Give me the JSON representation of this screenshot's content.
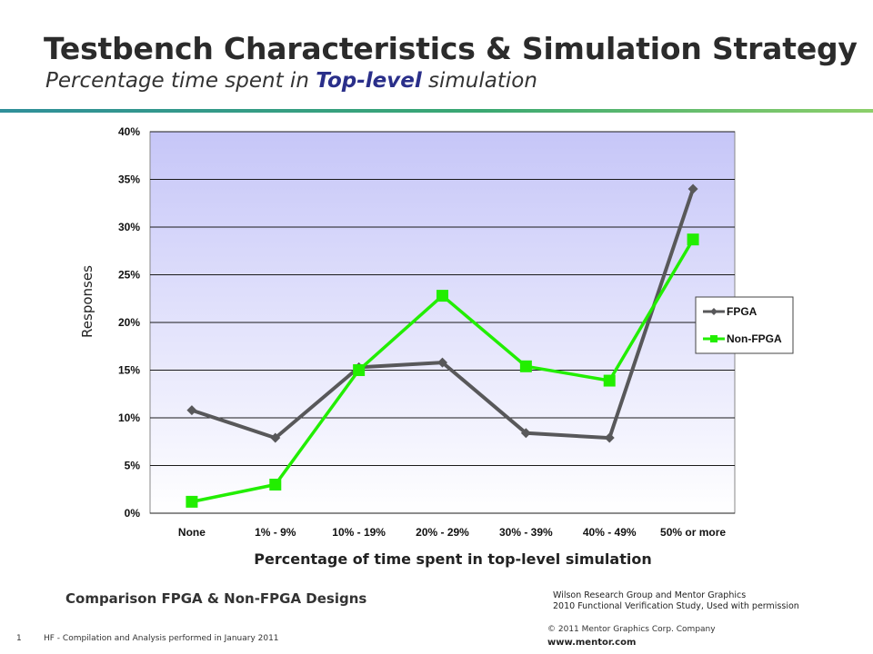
{
  "slide": {
    "title": "Testbench Characteristics & Simulation Strategy",
    "subtitle_pre": "Percentage time spent in ",
    "subtitle_highlight": "Top-level",
    "subtitle_post": " simulation",
    "caption": "Comparison FPGA & Non-FPGA Designs",
    "credit_line1": "Wilson Research Group and Mentor Graphics",
    "credit_line2": "2010 Functional Verification Study,  Used with permission",
    "page_number": "1",
    "footer_note": "HF - Compilation and Analysis performed in January 2011",
    "copyright": "© 2011 Mentor Graphics Corp. Company",
    "website": "www.mentor.com"
  },
  "colors": {
    "fpga": "#58585a",
    "non_fpga": "#22ee00",
    "plot_bg_top": "#c6c6f8",
    "plot_bg_bottom": "#ffffff",
    "accent_rule": "#3aa872"
  },
  "chart_data": {
    "type": "line",
    "xlabel": "Percentage of time spent in top-level simulation",
    "ylabel": "Responses",
    "categories": [
      "None",
      "1% - 9%",
      "10% - 19%",
      "20% - 29%",
      "30% - 39%",
      "40% - 49%",
      "50% or more"
    ],
    "yticks": [
      "0%",
      "5%",
      "10%",
      "15%",
      "20%",
      "25%",
      "30%",
      "35%",
      "40%"
    ],
    "ylim": [
      0,
      40
    ],
    "grid": true,
    "legend_position": "right",
    "series": [
      {
        "name": "FPGA",
        "marker": "diamond",
        "values": [
          10.8,
          7.9,
          15.3,
          15.8,
          8.4,
          7.9,
          34.0
        ]
      },
      {
        "name": "Non-FPGA",
        "marker": "square",
        "values": [
          1.2,
          3.0,
          15.0,
          22.8,
          15.4,
          13.9,
          28.7
        ]
      }
    ]
  }
}
